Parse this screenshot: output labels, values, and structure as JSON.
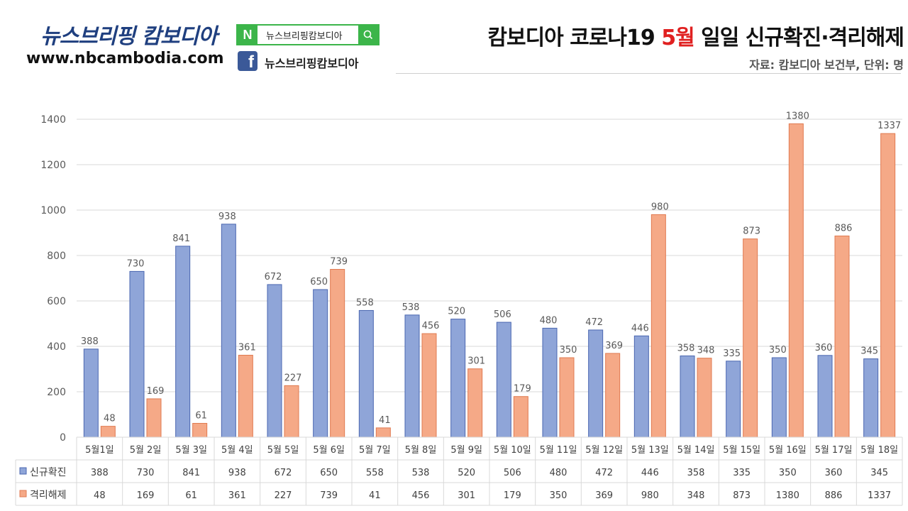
{
  "header": {
    "brand_title": "뉴스브리핑 캄보디아",
    "brand_url": "www.nbcambodia.com",
    "naver_badge": "N",
    "naver_label": "뉴스브리핑캄보디아",
    "facebook_badge": "f",
    "facebook_label": "뉴스브리핑캄보디아",
    "title_part1": "캄보디아 코로나19 ",
    "title_highlight": "5월",
    "title_part2": " 일일 신규확진·격리해제",
    "source": "자료: 캄보디아 보건부, 단위: 명"
  },
  "colors": {
    "series1": "#8fa5d8",
    "series2": "#f5a987",
    "title_highlight": "#e02020",
    "naver_green": "#3cb54a",
    "facebook_blue": "#3b5998"
  },
  "chart_data": {
    "type": "bar",
    "categories": [
      "5월1일",
      "5월 2일",
      "5월 3일",
      "5월 4일",
      "5월 5일",
      "5월 6일",
      "5월 7일",
      "5월 8일",
      "5월 9일",
      "5월 10일",
      "5월 11일",
      "5월 12일",
      "5월 13일",
      "5월 14일",
      "5월 15일",
      "5월 16일",
      "5월 17일",
      "5월 18일"
    ],
    "series": [
      {
        "name": "신규확진",
        "values": [
          388,
          730,
          841,
          938,
          672,
          650,
          558,
          538,
          520,
          506,
          480,
          472,
          446,
          358,
          335,
          350,
          360,
          345
        ]
      },
      {
        "name": "격리해제",
        "values": [
          48,
          169,
          61,
          361,
          227,
          739,
          41,
          456,
          301,
          179,
          350,
          369,
          980,
          348,
          873,
          1380,
          886,
          1337
        ]
      }
    ],
    "yticks": [
      0,
      200,
      400,
      600,
      800,
      1000,
      1200,
      1400
    ],
    "ylim": [
      0,
      1400
    ],
    "grid": true,
    "legend": "data-table",
    "title": "",
    "xlabel": "",
    "ylabel": ""
  }
}
